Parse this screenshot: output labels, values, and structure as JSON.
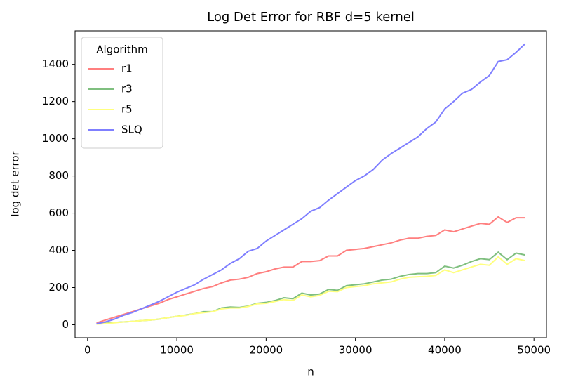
{
  "chart_data": {
    "type": "line",
    "title": "Log Det Error for RBF d=5 kernel",
    "x_label": "n",
    "y_label": "log det error",
    "x": [
      1000,
      2000,
      3000,
      4000,
      5000,
      6000,
      7000,
      8000,
      9000,
      10000,
      11000,
      12000,
      13000,
      14000,
      15000,
      16000,
      17000,
      18000,
      19000,
      20000,
      21000,
      22000,
      23000,
      24000,
      25000,
      26000,
      27000,
      28000,
      29000,
      30000,
      31000,
      32000,
      33000,
      34000,
      35000,
      36000,
      37000,
      38000,
      39000,
      40000,
      41000,
      42000,
      43000,
      44000,
      45000,
      46000,
      47000,
      48000,
      49000
    ],
    "series": [
      {
        "name": "r1",
        "color": "#ff7f7f",
        "values": [
          10,
          25,
          40,
          55,
          70,
          85,
          100,
          115,
          135,
          150,
          165,
          180,
          195,
          205,
          225,
          240,
          245,
          255,
          275,
          285,
          300,
          310,
          310,
          340,
          340,
          345,
          370,
          370,
          400,
          405,
          410,
          420,
          430,
          440,
          455,
          465,
          465,
          475,
          480,
          510,
          500,
          515,
          530,
          545,
          540,
          580,
          550,
          575,
          575
        ]
      },
      {
        "name": "r3",
        "color": "#7fbf7f",
        "values": [
          5,
          8,
          12,
          15,
          18,
          22,
          25,
          30,
          38,
          45,
          52,
          60,
          70,
          70,
          90,
          95,
          93,
          100,
          115,
          120,
          130,
          145,
          140,
          170,
          160,
          165,
          190,
          185,
          210,
          215,
          220,
          230,
          240,
          245,
          260,
          270,
          275,
          275,
          280,
          315,
          305,
          320,
          340,
          355,
          350,
          390,
          350,
          385,
          375
        ]
      },
      {
        "name": "r5",
        "color": "#ffff7f",
        "values": [
          3,
          6,
          10,
          15,
          18,
          22,
          25,
          30,
          38,
          45,
          50,
          60,
          65,
          70,
          85,
          90,
          90,
          98,
          112,
          115,
          125,
          135,
          130,
          160,
          150,
          158,
          180,
          178,
          200,
          205,
          210,
          220,
          225,
          230,
          245,
          255,
          258,
          260,
          265,
          295,
          280,
          295,
          310,
          325,
          320,
          365,
          325,
          355,
          345
        ]
      },
      {
        "name": "SLQ",
        "color": "#7f7fff",
        "values": [
          5,
          15,
          30,
          50,
          65,
          85,
          105,
          125,
          150,
          175,
          195,
          215,
          245,
          270,
          295,
          330,
          355,
          395,
          410,
          450,
          480,
          510,
          540,
          570,
          610,
          630,
          670,
          705,
          740,
          775,
          800,
          835,
          885,
          920,
          950,
          980,
          1010,
          1055,
          1090,
          1160,
          1200,
          1245,
          1265,
          1305,
          1340,
          1415,
          1425,
          1465,
          1510
        ]
      }
    ],
    "legend_title": "Algorithm",
    "legend": "upper left",
    "xlim": [
      -1400,
      51400
    ],
    "xticks": [
      0,
      10000,
      20000,
      30000,
      40000,
      50000
    ],
    "ylim": [
      -70,
      1580
    ],
    "yticks": [
      0,
      200,
      400,
      600,
      800,
      1000,
      1200,
      1400
    ],
    "grid": false
  }
}
